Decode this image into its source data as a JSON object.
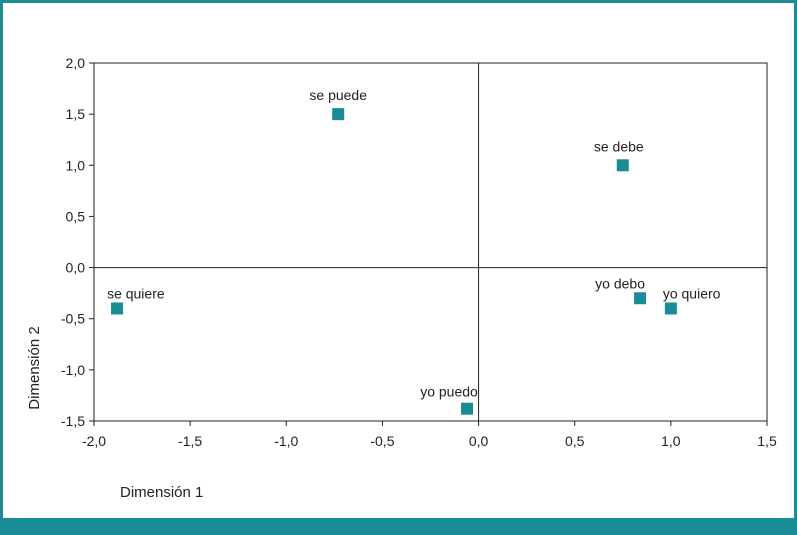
{
  "chart_data": {
    "type": "scatter",
    "xlabel": "Dimensión 1",
    "ylabel": "Dimensión 2",
    "xlim": [
      -2.0,
      1.5
    ],
    "ylim": [
      -1.5,
      2.0
    ],
    "x_ticks": [
      {
        "value": -2.0,
        "label": "-2,0"
      },
      {
        "value": -1.5,
        "label": "-1,5"
      },
      {
        "value": -1.0,
        "label": "-1,0"
      },
      {
        "value": -0.5,
        "label": "-0,5"
      },
      {
        "value": 0.0,
        "label": "0,0"
      },
      {
        "value": 0.5,
        "label": "0,5"
      },
      {
        "value": 1.0,
        "label": "1,0"
      },
      {
        "value": 1.5,
        "label": "1,5"
      }
    ],
    "y_ticks": [
      {
        "value": 2.0,
        "label": "2,0"
      },
      {
        "value": 1.5,
        "label": "1,5"
      },
      {
        "value": 1.0,
        "label": "1,0"
      },
      {
        "value": 0.5,
        "label": "0,5"
      },
      {
        "value": 0.0,
        "label": "0,0"
      },
      {
        "value": -0.5,
        "label": "-0,5"
      },
      {
        "value": -1.0,
        "label": "-1,0"
      },
      {
        "value": -1.5,
        "label": "-1,5"
      }
    ],
    "reference_lines": {
      "x": 0.0,
      "y": 0.0
    },
    "grid": false,
    "points": [
      {
        "label": "se puede",
        "x": -0.73,
        "y": 1.5
      },
      {
        "label": "se debe",
        "x": 0.75,
        "y": 1.0
      },
      {
        "label": "se quiere",
        "x": -1.88,
        "y": -0.4
      },
      {
        "label": "yo debo",
        "x": 0.84,
        "y": -0.3
      },
      {
        "label": "yo quiero",
        "x": 1.0,
        "y": -0.4
      },
      {
        "label": "yo puedo",
        "x": -0.06,
        "y": -1.38
      }
    ],
    "marker": {
      "shape": "square",
      "color": "#1a8c96"
    },
    "frame_color": "#1a8c96"
  }
}
